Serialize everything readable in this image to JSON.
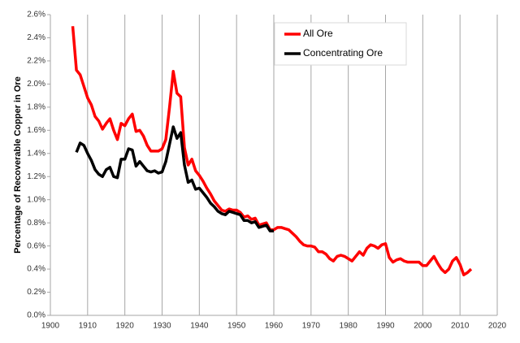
{
  "chart_data": {
    "type": "line",
    "y_label": "Percentage of Recoverable Copper in Ore",
    "x": [
      1906,
      1907,
      1908,
      1909,
      1910,
      1911,
      1912,
      1913,
      1914,
      1915,
      1916,
      1917,
      1918,
      1919,
      1920,
      1921,
      1922,
      1923,
      1924,
      1925,
      1926,
      1927,
      1928,
      1929,
      1930,
      1931,
      1932,
      1933,
      1934,
      1935,
      1936,
      1937,
      1938,
      1939,
      1940,
      1941,
      1942,
      1943,
      1944,
      1945,
      1946,
      1947,
      1948,
      1949,
      1950,
      1951,
      1952,
      1953,
      1954,
      1955,
      1956,
      1957,
      1958,
      1959,
      1960,
      1961,
      1962,
      1963,
      1964,
      1965,
      1966,
      1967,
      1968,
      1969,
      1970,
      1971,
      1972,
      1973,
      1974,
      1975,
      1976,
      1977,
      1978,
      1979,
      1980,
      1981,
      1982,
      1983,
      1984,
      1985,
      1986,
      1987,
      1988,
      1989,
      1990,
      1991,
      1992,
      1993,
      1994,
      1995,
      1996,
      1997,
      1998,
      1999,
      2000,
      2001,
      2002,
      2003,
      2004,
      2005,
      2006,
      2007,
      2008,
      2009,
      2010,
      2011,
      2012,
      2013
    ],
    "series": [
      {
        "name": "All Ore",
        "color": "#ff0000",
        "values": [
          2.5,
          2.12,
          2.08,
          1.98,
          1.88,
          1.82,
          1.72,
          1.68,
          1.61,
          1.66,
          1.7,
          1.6,
          1.52,
          1.66,
          1.64,
          1.7,
          1.74,
          1.59,
          1.6,
          1.55,
          1.47,
          1.42,
          1.42,
          1.42,
          1.44,
          1.52,
          1.8,
          2.11,
          1.92,
          1.89,
          1.45,
          1.3,
          1.35,
          1.25,
          1.21,
          1.16,
          1.1,
          1.05,
          0.99,
          0.95,
          0.91,
          0.9,
          0.92,
          0.91,
          0.91,
          0.89,
          0.85,
          0.86,
          0.83,
          0.84,
          0.78,
          0.79,
          0.8,
          0.74,
          0.74,
          0.76,
          0.76,
          0.75,
          0.74,
          0.71,
          0.68,
          0.64,
          0.61,
          0.6,
          0.6,
          0.59,
          0.55,
          0.55,
          0.53,
          0.49,
          0.47,
          0.51,
          0.52,
          0.51,
          0.49,
          0.47,
          0.51,
          0.55,
          0.52,
          0.58,
          0.61,
          0.6,
          0.58,
          0.61,
          0.62,
          0.5,
          0.46,
          0.48,
          0.49,
          0.47,
          0.46,
          0.46,
          0.46,
          0.46,
          0.43,
          0.43,
          0.47,
          0.51,
          0.45,
          0.4,
          0.37,
          0.4,
          0.47,
          0.5,
          0.44,
          0.35,
          0.37,
          0.4
        ]
      },
      {
        "name": "Concentrating Ore",
        "color": "#000000",
        "values": [
          null,
          1.41,
          1.49,
          1.47,
          1.4,
          1.34,
          1.26,
          1.22,
          1.2,
          1.26,
          1.28,
          1.2,
          1.19,
          1.35,
          1.35,
          1.44,
          1.43,
          1.29,
          1.33,
          1.29,
          1.25,
          1.24,
          1.25,
          1.23,
          1.24,
          1.33,
          1.48,
          1.63,
          1.53,
          1.58,
          1.3,
          1.15,
          1.17,
          1.09,
          1.1,
          1.06,
          1.02,
          0.97,
          0.94,
          0.9,
          0.88,
          0.87,
          0.9,
          0.89,
          0.88,
          0.87,
          0.82,
          0.82,
          0.8,
          0.81,
          0.76,
          0.77,
          0.78,
          0.73,
          0.73,
          null,
          null,
          null,
          null,
          null,
          null,
          null,
          null,
          null,
          null,
          null,
          null,
          null,
          null,
          null,
          null,
          null,
          null,
          null,
          null,
          null,
          null,
          null,
          null,
          null,
          null,
          null,
          null,
          null,
          null,
          null,
          null,
          null,
          null,
          null,
          null,
          null,
          null,
          null,
          null,
          null,
          null,
          null,
          null,
          null,
          null,
          null,
          null,
          null,
          null,
          null,
          null,
          null
        ]
      }
    ],
    "xlim": [
      1900,
      2020
    ],
    "xticks": [
      1900,
      1910,
      1920,
      1930,
      1940,
      1950,
      1960,
      1970,
      1980,
      1990,
      2000,
      2010,
      2020
    ],
    "ylim": [
      0,
      2.6
    ],
    "yticks": [
      {
        "value": 0,
        "label": "0.0%"
      },
      {
        "value": 0.2,
        "label": "0.2%"
      },
      {
        "value": 0.4,
        "label": "0.4%"
      },
      {
        "value": 0.6,
        "label": "0.6%"
      },
      {
        "value": 0.8,
        "label": "0.8%"
      },
      {
        "value": 1.0,
        "label": "1.0%"
      },
      {
        "value": 1.2,
        "label": "1.2%"
      },
      {
        "value": 1.4,
        "label": "1.4%"
      },
      {
        "value": 1.6,
        "label": "1.6%"
      },
      {
        "value": 1.8,
        "label": "1.8%"
      },
      {
        "value": 2.0,
        "label": "2.0%"
      },
      {
        "value": 2.2,
        "label": "2.2%"
      },
      {
        "value": 2.4,
        "label": "2.4%"
      },
      {
        "value": 2.6,
        "label": "2.6%"
      }
    ],
    "x_grid": true,
    "legend": "top-center"
  }
}
